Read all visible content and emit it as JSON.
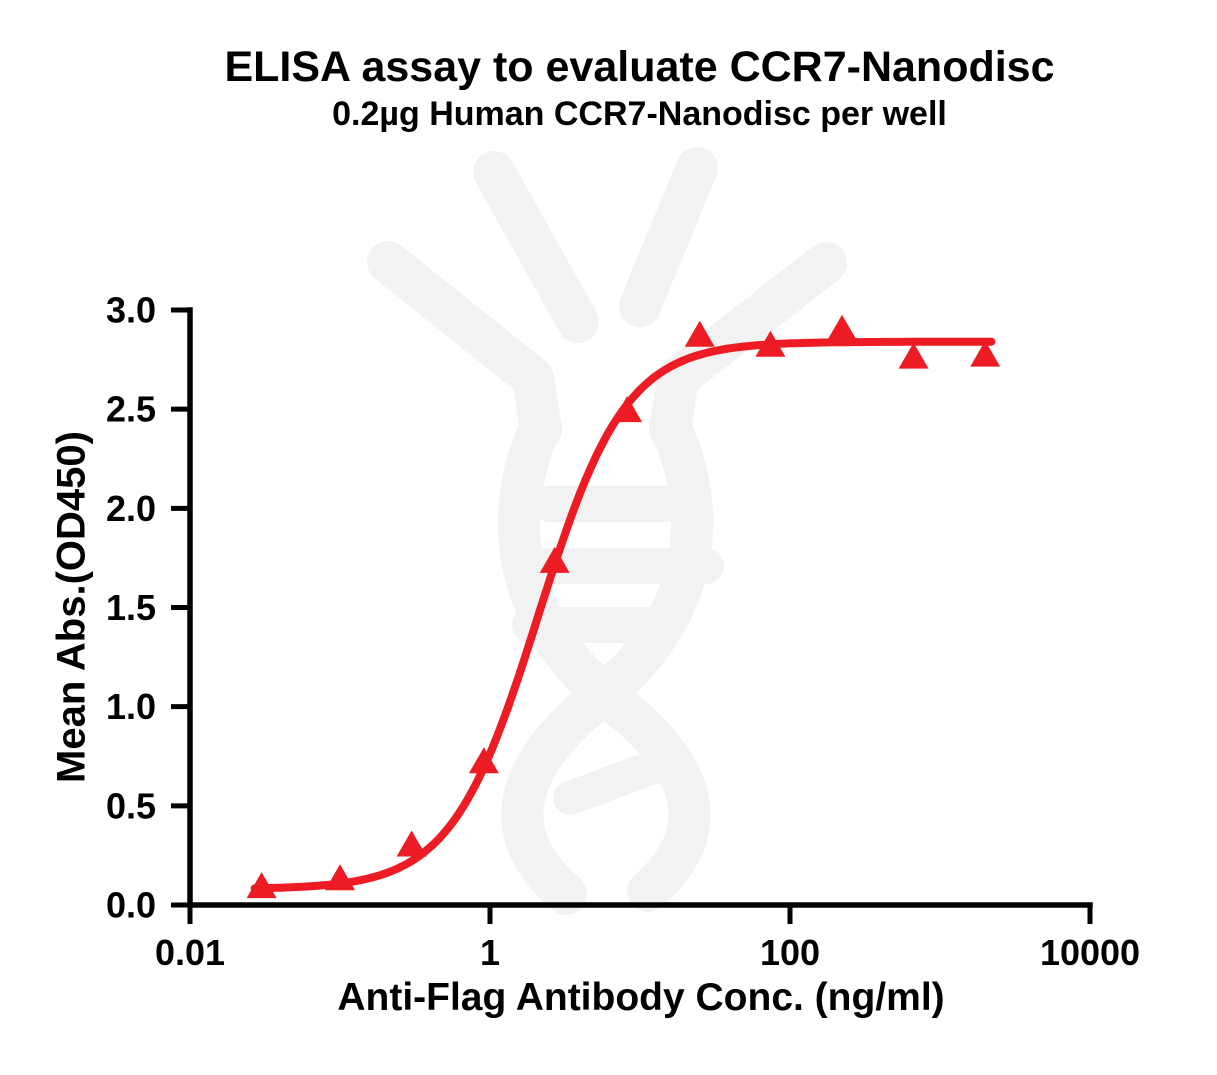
{
  "figure": {
    "title": "ELISA assay to evaluate CCR7-Nanodisc",
    "subtitle": "0.2µg Human CCR7-Nanodisc per well"
  },
  "colors": {
    "series_red": "#ED1C24",
    "axis": "#000000",
    "watermark_gray": "#F2F2F2",
    "background": "#FFFFFF"
  },
  "chart_data": {
    "type": "scatter",
    "x_scale": "log10",
    "title": "ELISA assay to evaluate CCR7-Nanodisc",
    "subtitle": "0.2µg Human CCR7-Nanodisc per well",
    "xlabel": "Anti-Flag Antibody Conc. (ng/ml)",
    "ylabel": "Mean Abs.(OD450)",
    "xlim": [
      0.01,
      10000
    ],
    "ylim": [
      0,
      3
    ],
    "grid": false,
    "legend": "none",
    "x_ticks": [
      "0.01",
      "1",
      "100",
      "10000"
    ],
    "x_tick_values": [
      0.01,
      1,
      100,
      10000
    ],
    "y_ticks": [
      "0.0",
      "0.5",
      "1.0",
      "1.5",
      "2.0",
      "2.5",
      "3.0"
    ],
    "y_tick_values": [
      0,
      0.5,
      1,
      1.5,
      2,
      2.5,
      3
    ],
    "series": [
      {
        "name": "Human CCR7-Nanodisc",
        "marker": "filled-triangle-up",
        "color": "#ED1C24",
        "points": [
          {
            "x": 0.03,
            "y": 0.09
          },
          {
            "x": 0.1,
            "y": 0.13
          },
          {
            "x": 0.3,
            "y": 0.3
          },
          {
            "x": 0.91,
            "y": 0.72
          },
          {
            "x": 2.7,
            "y": 1.73
          },
          {
            "x": 8.2,
            "y": 2.49
          },
          {
            "x": 25,
            "y": 2.87
          },
          {
            "x": 74,
            "y": 2.82
          },
          {
            "x": 222,
            "y": 2.9
          },
          {
            "x": 667,
            "y": 2.76
          },
          {
            "x": 2000,
            "y": 2.77
          }
        ]
      }
    ],
    "fit_curve": {
      "model": "4PL",
      "bottom": 0.08,
      "top": 2.84,
      "ec50_ng_ml": 2.1,
      "hill_slope": 1.5,
      "x_start": 0.027,
      "x_end": 2200
    }
  }
}
